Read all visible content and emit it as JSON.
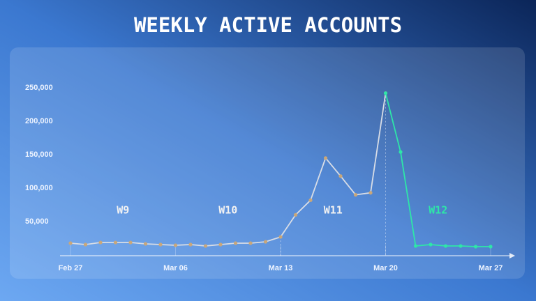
{
  "chart_data": {
    "type": "line",
    "title": "WEEKLY ACTIVE ACCOUNTS",
    "categories": [
      "Feb 27",
      null,
      null,
      null,
      null,
      null,
      null,
      "Mar 06",
      null,
      null,
      null,
      null,
      null,
      null,
      "Mar 13",
      null,
      null,
      null,
      null,
      null,
      null,
      "Mar 20",
      null,
      null,
      null,
      null,
      null,
      null,
      "Mar 27"
    ],
    "series": [
      {
        "color": "#d8dde6",
        "marker_color": "#c9a77a",
        "values": [
          17700,
          15600,
          18700,
          18700,
          18700,
          16700,
          15600,
          14600,
          15600,
          13500,
          15600,
          17700,
          17700,
          19800,
          27000,
          60000,
          82000,
          145000,
          118000,
          90000,
          93000,
          242000,
          null,
          null,
          null,
          null,
          null,
          null,
          null
        ]
      },
      {
        "color": "#2ee6a8",
        "marker_color": "#2ee6a8",
        "values": [
          null,
          null,
          null,
          null,
          null,
          null,
          null,
          null,
          null,
          null,
          null,
          null,
          null,
          null,
          null,
          null,
          null,
          null,
          null,
          null,
          null,
          242000,
          154000,
          13500,
          15600,
          13500,
          13500,
          12500,
          12500
        ]
      }
    ],
    "annotations": [
      {
        "text": "W9",
        "color": "#f2f2f2"
      },
      {
        "text": "W10",
        "color": "#f2f2f2"
      },
      {
        "text": "W11",
        "color": "#f2f2f2"
      },
      {
        "text": "W12",
        "color": "#2ee6a8"
      }
    ],
    "ylim": [
      0,
      250000
    ],
    "yticks": [
      {
        "value": 50000,
        "label": "50,000"
      },
      {
        "value": 100000,
        "label": "100,000"
      },
      {
        "value": 150000,
        "label": "150,000"
      },
      {
        "value": 200000,
        "label": "200,000"
      },
      {
        "value": 250000,
        "label": "250,000"
      }
    ],
    "grid": false
  }
}
